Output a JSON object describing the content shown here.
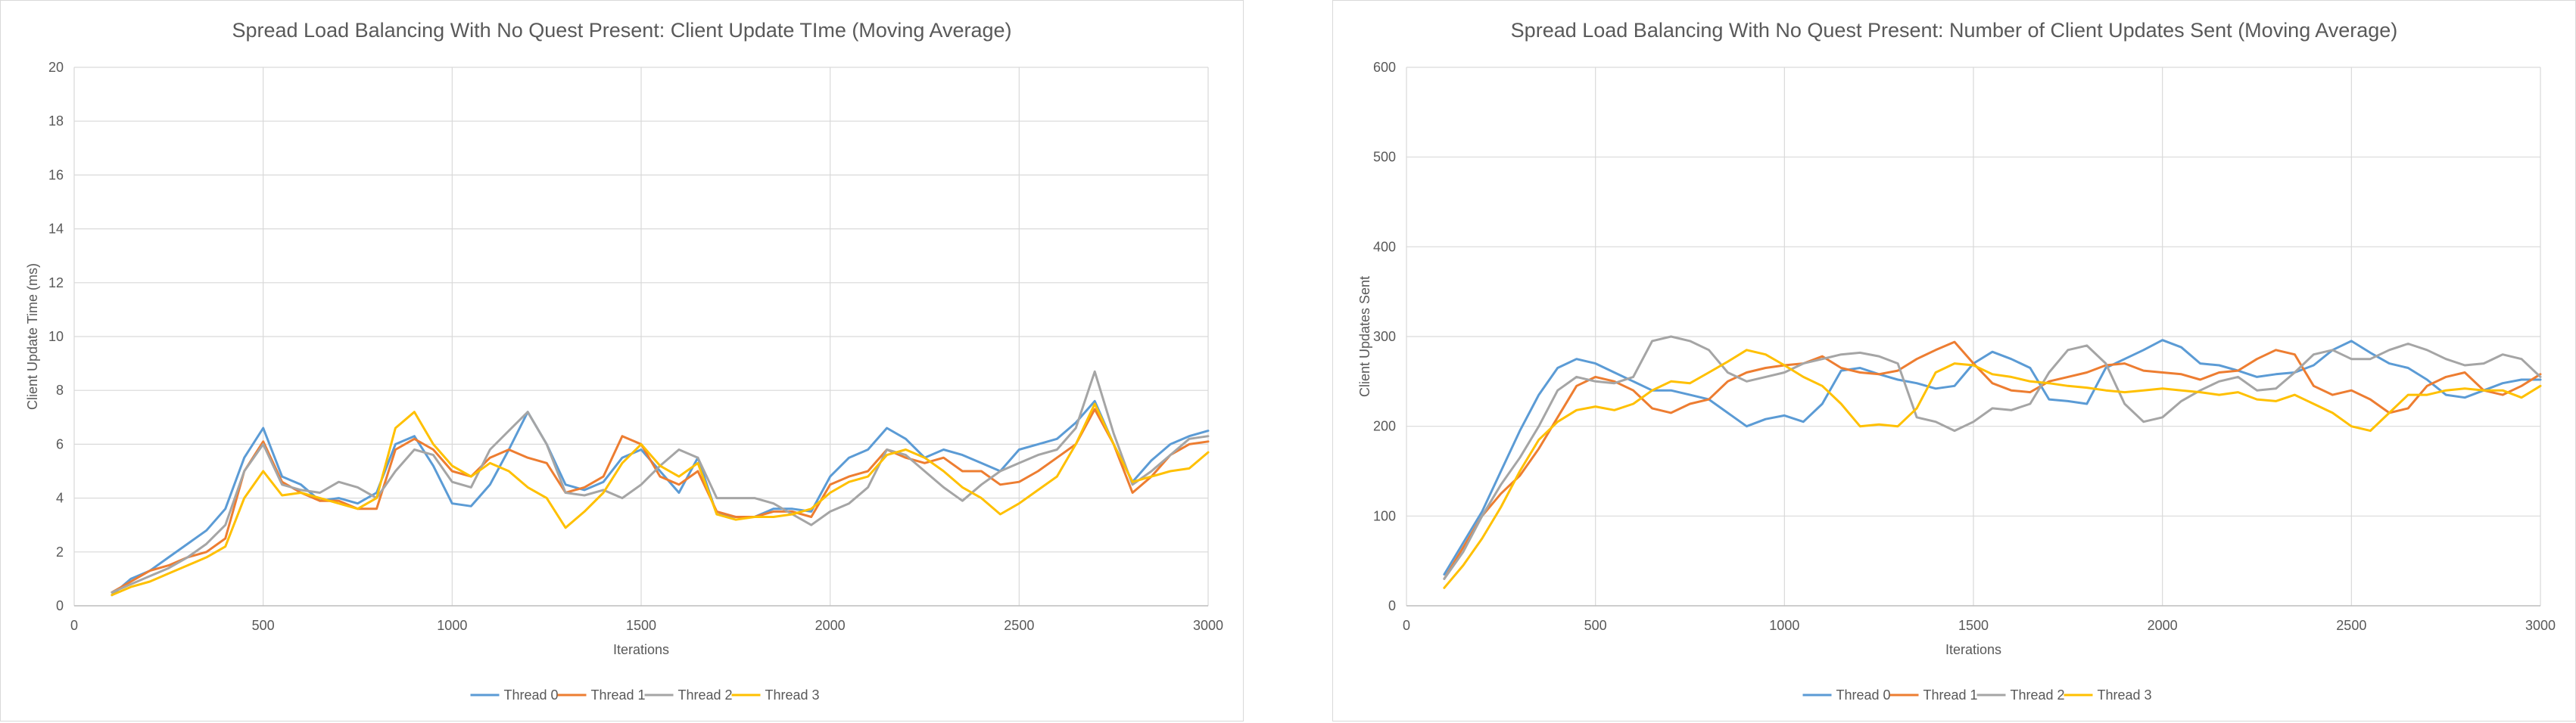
{
  "charts": [
    {
      "title": "Spread Load Balancing With No Quest Present: Client Update TIme (Moving Average)",
      "xlabel": "Iterations",
      "ylabel": "Client Update Time (ms)",
      "xticks": [
        "0",
        "500",
        "1000",
        "1500",
        "2000",
        "2500",
        "3000"
      ],
      "yticks": [
        "0",
        "2",
        "4",
        "6",
        "8",
        "10",
        "12",
        "14",
        "16",
        "18",
        "20"
      ]
    },
    {
      "title": "Spread Load Balancing With No Quest Present: Number of Client Updates Sent (Moving Average)",
      "xlabel": "Iterations",
      "ylabel": "Client Updates Sent",
      "xticks": [
        "0",
        "500",
        "1000",
        "1500",
        "2000",
        "2500",
        "3000"
      ],
      "yticks": [
        "0",
        "100",
        "200",
        "300",
        "400",
        "500",
        "600"
      ]
    }
  ],
  "legend": [
    "Thread 0",
    "Thread 1",
    "Thread 2",
    "Thread 3"
  ],
  "colors": [
    "#5b9bd5",
    "#ed7d31",
    "#a5a5a5",
    "#ffc000"
  ],
  "chart_data": [
    {
      "type": "line",
      "title": "Spread Load Balancing With No Quest Present: Client Update TIme (Moving Average)",
      "xlabel": "Iterations",
      "ylabel": "Client Update Time (ms)",
      "xlim": [
        0,
        3000
      ],
      "ylim": [
        0,
        20
      ],
      "grid": true,
      "legend_position": "bottom",
      "x": [
        100,
        150,
        200,
        250,
        300,
        350,
        400,
        450,
        500,
        550,
        600,
        650,
        700,
        750,
        800,
        850,
        900,
        950,
        1000,
        1050,
        1100,
        1150,
        1200,
        1250,
        1300,
        1350,
        1400,
        1450,
        1500,
        1550,
        1600,
        1650,
        1700,
        1750,
        1800,
        1850,
        1900,
        1950,
        2000,
        2050,
        2100,
        2150,
        2200,
        2250,
        2300,
        2350,
        2400,
        2450,
        2500,
        2550,
        2600,
        2650,
        2700,
        2750,
        2800,
        2850,
        2900,
        2950,
        3000
      ],
      "series": [
        {
          "name": "Thread 0",
          "values": [
            0.4,
            1.0,
            1.3,
            1.8,
            2.3,
            2.8,
            3.6,
            5.5,
            6.6,
            4.8,
            4.5,
            3.9,
            4.0,
            3.8,
            4.2,
            6.0,
            6.3,
            5.2,
            3.8,
            3.7,
            4.5,
            5.8,
            7.2,
            6.0,
            4.5,
            4.3,
            4.6,
            5.5,
            5.8,
            5.0,
            4.2,
            5.5,
            3.4,
            3.3,
            3.3,
            3.6,
            3.6,
            3.5,
            4.8,
            5.5,
            5.8,
            6.6,
            6.2,
            5.5,
            5.8,
            5.6,
            5.3,
            5.0,
            5.8,
            6.0,
            6.2,
            6.8,
            7.6,
            6.0,
            4.6,
            5.4,
            6.0,
            6.3,
            6.5
          ]
        },
        {
          "name": "Thread 1",
          "values": [
            0.5,
            0.9,
            1.3,
            1.5,
            1.8,
            2.0,
            2.5,
            5.0,
            6.1,
            4.6,
            4.2,
            3.9,
            3.9,
            3.6,
            3.6,
            5.8,
            6.2,
            5.8,
            5.0,
            4.8,
            5.5,
            5.8,
            5.5,
            5.3,
            4.2,
            4.4,
            4.8,
            6.3,
            6.0,
            4.8,
            4.5,
            5.0,
            3.5,
            3.3,
            3.3,
            3.5,
            3.5,
            3.3,
            4.5,
            4.8,
            5.0,
            5.8,
            5.5,
            5.3,
            5.5,
            5.0,
            5.0,
            4.5,
            4.6,
            5.0,
            5.5,
            6.0,
            7.3,
            6.0,
            4.2,
            4.8,
            5.6,
            6.0,
            6.1
          ]
        },
        {
          "name": "Thread 2",
          "values": [
            0.5,
            0.8,
            1.1,
            1.4,
            1.8,
            2.3,
            3.0,
            5.0,
            6.0,
            4.5,
            4.3,
            4.2,
            4.6,
            4.4,
            4.0,
            5.0,
            5.8,
            5.6,
            4.6,
            4.4,
            5.8,
            6.5,
            7.2,
            6.0,
            4.2,
            4.1,
            4.3,
            4.0,
            4.5,
            5.2,
            5.8,
            5.5,
            4.0,
            4.0,
            4.0,
            3.8,
            3.4,
            3.0,
            3.5,
            3.8,
            4.4,
            5.8,
            5.6,
            5.0,
            4.4,
            3.9,
            4.5,
            5.0,
            5.3,
            5.6,
            5.8,
            6.6,
            8.7,
            6.4,
            4.5,
            5.0,
            5.6,
            6.2,
            6.3
          ]
        },
        {
          "name": "Thread 3",
          "values": [
            0.4,
            0.7,
            0.9,
            1.2,
            1.5,
            1.8,
            2.2,
            4.0,
            5.0,
            4.1,
            4.2,
            4.0,
            3.8,
            3.6,
            4.0,
            6.6,
            7.2,
            6.0,
            5.2,
            4.8,
            5.3,
            5.0,
            4.4,
            4.0,
            2.9,
            3.5,
            4.2,
            5.3,
            6.0,
            5.2,
            4.8,
            5.3,
            3.4,
            3.2,
            3.3,
            3.3,
            3.4,
            3.6,
            4.2,
            4.6,
            4.8,
            5.6,
            5.8,
            5.5,
            5.0,
            4.4,
            4.0,
            3.4,
            3.8,
            4.3,
            4.8,
            6.0,
            7.5,
            6.0,
            4.6,
            4.8,
            5.0,
            5.1,
            5.7
          ]
        }
      ]
    },
    {
      "type": "line",
      "title": "Spread Load Balancing With No Quest Present: Number of Client Updates Sent (Moving Average)",
      "xlabel": "Iterations",
      "ylabel": "Client Updates Sent",
      "xlim": [
        0,
        3000
      ],
      "ylim": [
        0,
        600
      ],
      "grid": true,
      "legend_position": "bottom",
      "x": [
        100,
        150,
        200,
        250,
        300,
        350,
        400,
        450,
        500,
        550,
        600,
        650,
        700,
        750,
        800,
        850,
        900,
        950,
        1000,
        1050,
        1100,
        1150,
        1200,
        1250,
        1300,
        1350,
        1400,
        1450,
        1500,
        1550,
        1600,
        1650,
        1700,
        1750,
        1800,
        1850,
        1900,
        1950,
        2000,
        2050,
        2100,
        2150,
        2200,
        2250,
        2300,
        2350,
        2400,
        2450,
        2500,
        2550,
        2600,
        2650,
        2700,
        2750,
        2800,
        2850,
        2900,
        2950,
        3000
      ],
      "series": [
        {
          "name": "Thread 0",
          "values": [
            35,
            70,
            105,
            150,
            195,
            235,
            265,
            275,
            270,
            260,
            250,
            240,
            240,
            235,
            230,
            215,
            200,
            208,
            212,
            205,
            225,
            262,
            265,
            258,
            252,
            248,
            242,
            245,
            270,
            283,
            275,
            265,
            230,
            228,
            225,
            265,
            275,
            285,
            296,
            288,
            270,
            268,
            262,
            255,
            258,
            260,
            268,
            285,
            295,
            282,
            270,
            265,
            252,
            235,
            232,
            240,
            248,
            252,
            252
          ]
        },
        {
          "name": "Thread 1",
          "values": [
            30,
            65,
            100,
            125,
            145,
            175,
            210,
            245,
            255,
            250,
            240,
            220,
            215,
            225,
            230,
            250,
            260,
            265,
            268,
            270,
            278,
            265,
            260,
            258,
            262,
            275,
            285,
            294,
            270,
            248,
            240,
            238,
            250,
            255,
            260,
            268,
            270,
            262,
            260,
            258,
            252,
            260,
            262,
            275,
            285,
            280,
            245,
            235,
            240,
            230,
            215,
            220,
            245,
            255,
            260,
            240,
            235,
            245,
            258
          ]
        },
        {
          "name": "Thread 2",
          "values": [
            30,
            60,
            100,
            135,
            165,
            200,
            240,
            255,
            250,
            248,
            255,
            295,
            300,
            295,
            285,
            260,
            250,
            255,
            260,
            270,
            275,
            280,
            282,
            278,
            270,
            210,
            205,
            195,
            205,
            220,
            218,
            225,
            260,
            285,
            290,
            270,
            225,
            205,
            210,
            228,
            240,
            250,
            255,
            240,
            242,
            260,
            280,
            285,
            275,
            275,
            285,
            292,
            285,
            275,
            268,
            270,
            280,
            275,
            255
          ]
        },
        {
          "name": "Thread 3",
          "values": [
            20,
            45,
            75,
            110,
            150,
            185,
            205,
            218,
            222,
            218,
            225,
            240,
            250,
            248,
            260,
            272,
            285,
            280,
            268,
            255,
            245,
            225,
            200,
            202,
            200,
            220,
            260,
            270,
            268,
            258,
            255,
            250,
            248,
            245,
            243,
            240,
            238,
            240,
            242,
            240,
            238,
            235,
            238,
            230,
            228,
            235,
            225,
            215,
            200,
            195,
            215,
            235,
            235,
            240,
            242,
            240,
            240,
            232,
            245
          ]
        }
      ]
    }
  ]
}
